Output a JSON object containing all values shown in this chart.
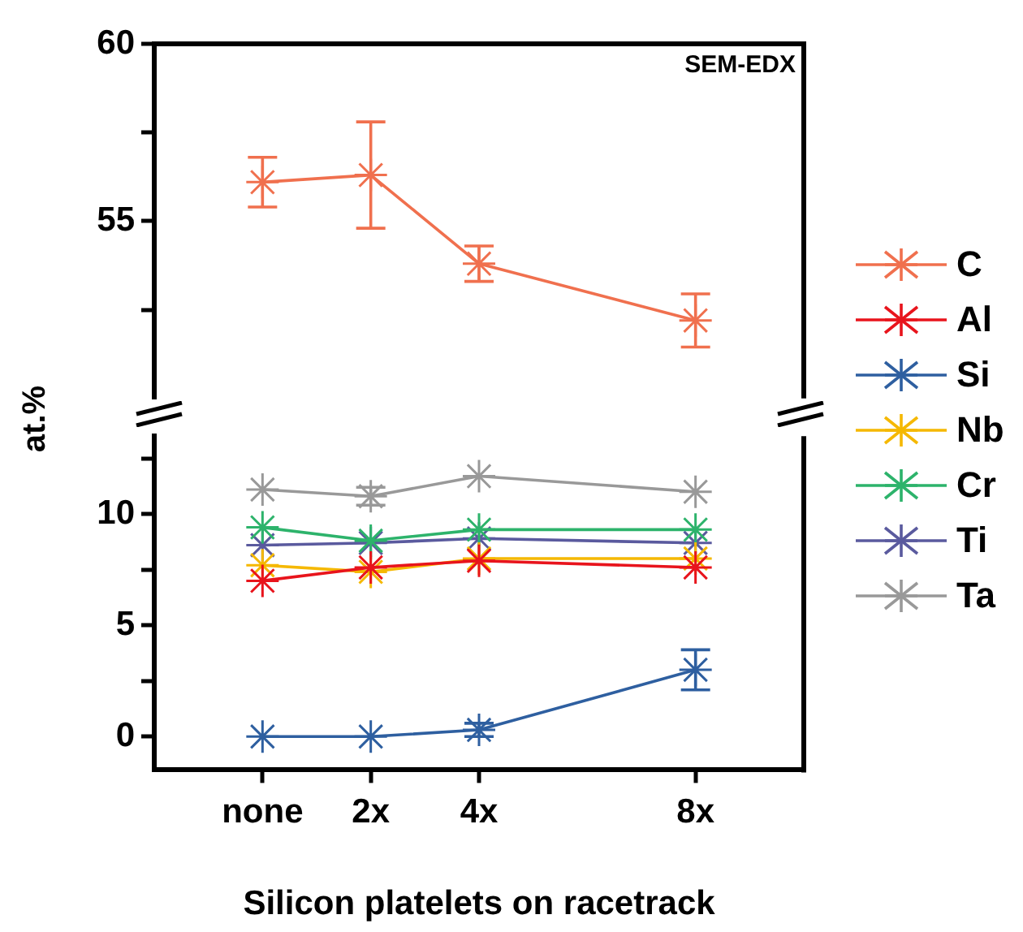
{
  "chart_data": [
    {
      "type": "line",
      "x": [
        0,
        2,
        4,
        8
      ],
      "xlim": [
        -2,
        10
      ],
      "tick_labels": "y",
      "ylim": [
        50,
        60
      ],
      "yticks": [
        {
          "value": 52.5,
          "label": null
        },
        55,
        {
          "value": 57.5,
          "label": null
        },
        60
      ],
      "marker": "cross",
      "legend": "right",
      "annotations": [
        "SEM-EDX"
      ],
      "series": [
        {
          "name": "C",
          "color": "#f0704e",
          "values": [
            56.1,
            56.3,
            53.8,
            52.2
          ],
          "errors": [
            0.7,
            1.5,
            0.5,
            0.75
          ]
        }
      ]
    },
    {
      "type": "line",
      "x": [
        0,
        2,
        4,
        8
      ],
      "xlim": [
        -2,
        10
      ],
      "xticks": [
        {
          "value": 0,
          "label": "none"
        },
        {
          "value": 2,
          "label": "2x"
        },
        {
          "value": 4,
          "label": "4x"
        },
        {
          "value": 8,
          "label": "8x"
        }
      ],
      "ylim": [
        -1.5,
        13.5
      ],
      "yticks": [
        0,
        {
          "value": 2.5,
          "label": null
        },
        5,
        {
          "value": 7.5,
          "label": null
        },
        10,
        {
          "value": 12.5,
          "label": null
        }
      ],
      "xlabel": "Silicon platelets on racetrack",
      "ylabel": "at.%",
      "marker": "cross",
      "legend": "right",
      "series": [
        {
          "name": "Al",
          "color": "#e8141c",
          "values": [
            7.0,
            7.6,
            7.9,
            7.6
          ]
        },
        {
          "name": "Si",
          "color": "#2e5fa0",
          "values": [
            0,
            0,
            0.3,
            3.0
          ],
          "errors": [
            null,
            null,
            0.3,
            0.9
          ]
        },
        {
          "name": "Nb",
          "color": "#f5b800",
          "values": [
            7.7,
            7.4,
            8.0,
            8.0
          ]
        },
        {
          "name": "Cr",
          "color": "#2db36b",
          "values": [
            9.4,
            8.8,
            9.3,
            9.3
          ]
        },
        {
          "name": "Ti",
          "color": "#5a5a9e",
          "values": [
            8.6,
            8.7,
            8.9,
            8.7
          ]
        },
        {
          "name": "Ta",
          "color": "#999999",
          "values": [
            11.1,
            10.8,
            11.7,
            11.0
          ],
          "errors": [
            null,
            0.4,
            null,
            null
          ]
        }
      ]
    }
  ]
}
